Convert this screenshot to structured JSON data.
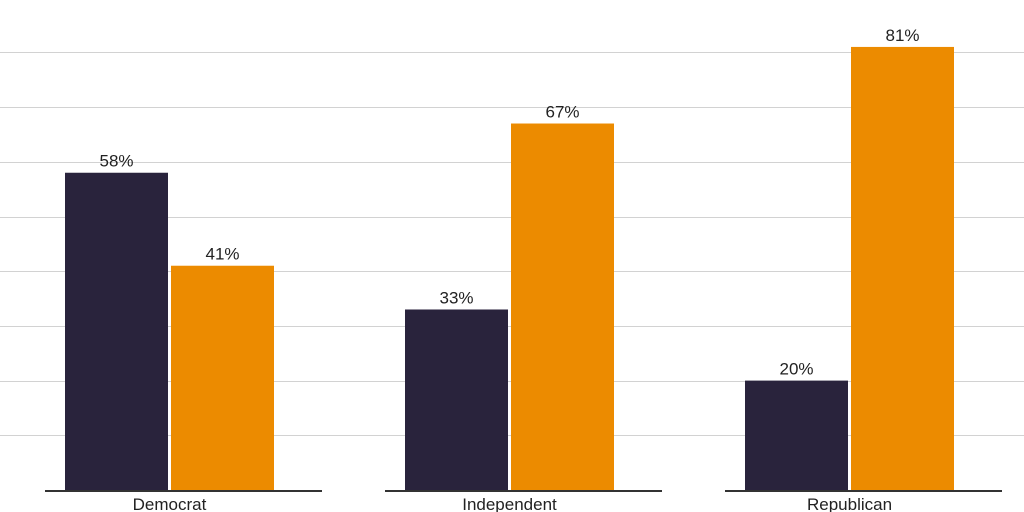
{
  "chart_data": {
    "type": "bar",
    "categories": [
      "Democrat",
      "Independent",
      "Republican"
    ],
    "series": [
      {
        "values": [
          58,
          33,
          20
        ],
        "value_labels": [
          "58%",
          "33%",
          "20%"
        ],
        "color": "#29233c"
      },
      {
        "values": [
          41,
          67,
          81
        ],
        "value_labels": [
          "41%",
          "67%",
          "81%"
        ],
        "color": "#ec8b00"
      }
    ],
    "title": "",
    "xlabel": "",
    "ylabel": "",
    "ylim": [
      0,
      90
    ],
    "y_grid_step": 10,
    "grid": true,
    "legend": "none"
  }
}
